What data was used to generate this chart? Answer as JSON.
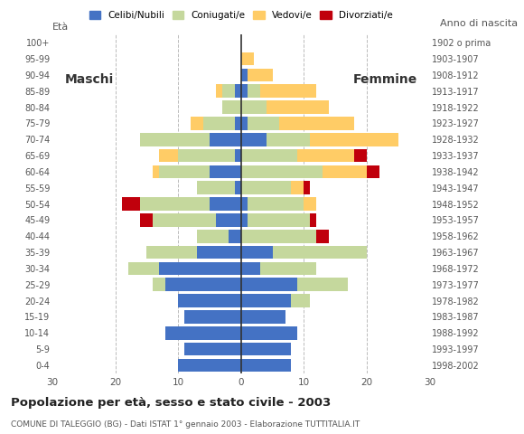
{
  "age_groups": [
    "0-4",
    "5-9",
    "10-14",
    "15-19",
    "20-24",
    "25-29",
    "30-34",
    "35-39",
    "40-44",
    "45-49",
    "50-54",
    "55-59",
    "60-64",
    "65-69",
    "70-74",
    "75-79",
    "80-84",
    "85-89",
    "90-94",
    "95-99",
    "100+"
  ],
  "birth_years": [
    "1998-2002",
    "1993-1997",
    "1988-1992",
    "1983-1987",
    "1978-1982",
    "1973-1977",
    "1968-1972",
    "1963-1967",
    "1958-1962",
    "1953-1957",
    "1948-1952",
    "1943-1947",
    "1938-1942",
    "1933-1937",
    "1928-1932",
    "1923-1927",
    "1918-1922",
    "1913-1917",
    "1908-1912",
    "1903-1907",
    "1902 o prima"
  ],
  "males": {
    "celibi": [
      10,
      9,
      12,
      9,
      10,
      12,
      13,
      7,
      2,
      4,
      5,
      1,
      5,
      1,
      5,
      1,
      0,
      1,
      0,
      0,
      0
    ],
    "coniugati": [
      0,
      0,
      0,
      0,
      0,
      2,
      5,
      8,
      5,
      10,
      11,
      6,
      8,
      9,
      11,
      5,
      3,
      2,
      0,
      0,
      0
    ],
    "vedovi": [
      0,
      0,
      0,
      0,
      0,
      0,
      0,
      0,
      0,
      0,
      0,
      0,
      1,
      3,
      0,
      2,
      0,
      1,
      0,
      0,
      0
    ],
    "divorziati": [
      0,
      0,
      0,
      0,
      0,
      0,
      0,
      0,
      0,
      2,
      3,
      0,
      0,
      0,
      0,
      0,
      0,
      0,
      0,
      0,
      0
    ]
  },
  "females": {
    "nubili": [
      8,
      8,
      9,
      7,
      8,
      9,
      3,
      5,
      0,
      1,
      1,
      0,
      0,
      0,
      4,
      1,
      0,
      1,
      1,
      0,
      0
    ],
    "coniugate": [
      0,
      0,
      0,
      0,
      3,
      8,
      9,
      15,
      12,
      10,
      9,
      8,
      13,
      9,
      7,
      5,
      4,
      2,
      0,
      0,
      0
    ],
    "vedove": [
      0,
      0,
      0,
      0,
      0,
      0,
      0,
      0,
      0,
      0,
      2,
      2,
      7,
      9,
      14,
      12,
      10,
      9,
      4,
      2,
      0
    ],
    "divorziate": [
      0,
      0,
      0,
      0,
      0,
      0,
      0,
      0,
      2,
      1,
      0,
      1,
      2,
      2,
      0,
      0,
      0,
      0,
      0,
      0,
      0
    ]
  },
  "colors": {
    "celibi_nubili": "#4472C4",
    "coniugati": "#C5D89D",
    "vedovi": "#FFCC66",
    "divorziati": "#C0000C"
  },
  "title": "Popolazione per età, sesso e stato civile - 2003",
  "subtitle": "COMUNE DI TALEGGIO (BG) - Dati ISTAT 1° gennaio 2003 - Elaborazione TUTTITALIA.IT",
  "label_eta": "Età",
  "label_anno": "Anno di nascita",
  "label_maschi": "Maschi",
  "label_femmine": "Femmine",
  "xlim": 30,
  "legend_labels": [
    "Celibi/Nubili",
    "Coniugati/e",
    "Vedovi/e",
    "Divorziati/e"
  ]
}
